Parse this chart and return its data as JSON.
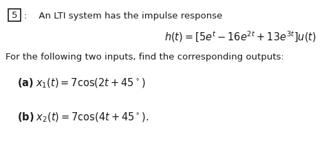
{
  "bg_color": "#ffffff",
  "text_color": "#1a1a1a",
  "box_number": "5",
  "header_text": ":    An LTI system has the impulse response",
  "impulse_eq": "$h(t) = \\left[5e^{t} - 16e^{2t} + 13e^{3t}\\right] u(t)$",
  "body_text": "For the following two inputs, find the corresponding outputs:",
  "part_a_eq": "$\\mathbf{(a)}\\; x_1(t) = 7\\cos(2t + 45^\\circ)$",
  "part_b_eq": "$\\mathbf{(b)}\\; x_2(t) = 7\\cos(4t + 45^\\circ).$",
  "figsize": [
    4.74,
    2.32
  ],
  "dpi": 100,
  "main_fontsize": 9.5,
  "eq_fontsize": 10.5
}
